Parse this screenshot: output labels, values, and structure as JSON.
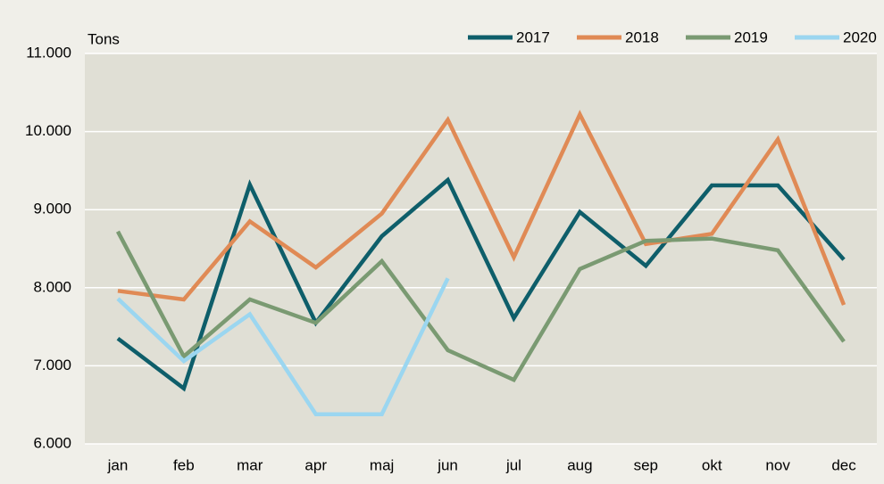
{
  "chart_data": {
    "type": "line",
    "y_label": "Tons",
    "categories": [
      "jan",
      "feb",
      "mar",
      "apr",
      "maj",
      "jun",
      "jul",
      "aug",
      "sep",
      "okt",
      "nov",
      "dec"
    ],
    "series": [
      {
        "name": "2017",
        "color": "#0e5e6a",
        "values": [
          7350,
          6710,
          9320,
          7550,
          8660,
          9380,
          7610,
          8970,
          8280,
          9310,
          9310,
          8360
        ]
      },
      {
        "name": "2018",
        "color": "#e08a55",
        "values": [
          7960,
          7850,
          8850,
          8260,
          8950,
          10150,
          8390,
          10220,
          8560,
          8690,
          9900,
          7780
        ]
      },
      {
        "name": "2019",
        "color": "#7a9a72",
        "values": [
          8720,
          7120,
          7850,
          7550,
          8340,
          7200,
          6820,
          8240,
          8600,
          8630,
          8480,
          7310
        ]
      },
      {
        "name": "2020",
        "color": "#9bd6f0",
        "values": [
          7860,
          7060,
          7660,
          6380,
          6380,
          8120,
          null,
          null,
          null,
          null,
          null,
          null
        ]
      }
    ],
    "ylim": [
      6000,
      11000
    ],
    "yticks": [
      {
        "value": 6000,
        "label": "6.000"
      },
      {
        "value": 7000,
        "label": "7.000"
      },
      {
        "value": 8000,
        "label": "8.000"
      },
      {
        "value": 9000,
        "label": "9.000"
      },
      {
        "value": 10000,
        "label": "10.000"
      },
      {
        "value": 11000,
        "label": "11.000"
      }
    ],
    "grid": true,
    "legend": "top-right"
  }
}
